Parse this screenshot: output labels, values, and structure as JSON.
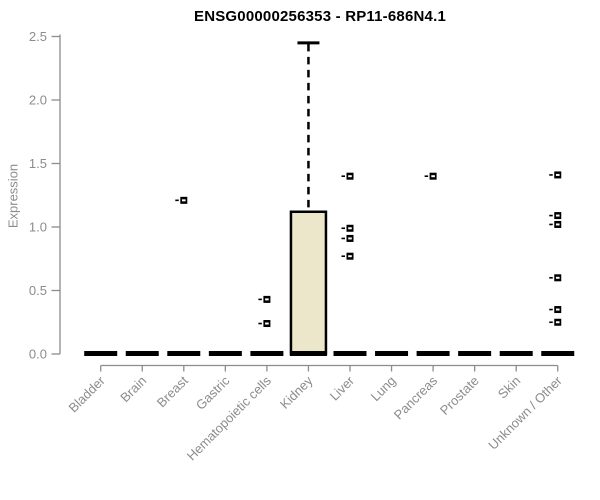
{
  "chart_data": {
    "type": "boxplot",
    "title": "ENSG00000256353 - RP11-686N4.1",
    "ylabel": "Expression",
    "xlabel": "",
    "ylim": [
      0,
      2.5
    ],
    "yticks": [
      "0.0",
      "0.5",
      "1.0",
      "1.5",
      "2.0",
      "2.5"
    ],
    "grid": "off",
    "legend": "none",
    "categories": [
      "Bladder",
      "Brain",
      "Breast",
      "Gastric",
      "Hematopoietic cells",
      "Kidney",
      "Liver",
      "Lung",
      "Pancreas",
      "Prostate",
      "Skin",
      "Unknown / Other"
    ],
    "boxes": [
      {
        "category": "Bladder",
        "whisker_low": 0,
        "q1": 0,
        "median": 0,
        "q3": 0,
        "whisker_high": 0,
        "outliers": []
      },
      {
        "category": "Brain",
        "whisker_low": 0,
        "q1": 0,
        "median": 0,
        "q3": 0,
        "whisker_high": 0,
        "outliers": []
      },
      {
        "category": "Breast",
        "whisker_low": 0,
        "q1": 0,
        "median": 0,
        "q3": 0,
        "whisker_high": 0,
        "outliers": [
          1.21
        ]
      },
      {
        "category": "Gastric",
        "whisker_low": 0,
        "q1": 0,
        "median": 0,
        "q3": 0,
        "whisker_high": 0,
        "outliers": []
      },
      {
        "category": "Hematopoietic cells",
        "whisker_low": 0,
        "q1": 0,
        "median": 0,
        "q3": 0,
        "whisker_high": 0,
        "outliers": [
          0.43,
          0.24
        ]
      },
      {
        "category": "Kidney",
        "whisker_low": 0,
        "q1": 0,
        "median": 0,
        "q3": 1.12,
        "whisker_high": 2.45,
        "outliers": []
      },
      {
        "category": "Liver",
        "whisker_low": 0,
        "q1": 0,
        "median": 0,
        "q3": 0,
        "whisker_high": 0,
        "outliers": [
          1.4,
          0.99,
          0.91,
          0.77
        ]
      },
      {
        "category": "Lung",
        "whisker_low": 0,
        "q1": 0,
        "median": 0,
        "q3": 0,
        "whisker_high": 0,
        "outliers": []
      },
      {
        "category": "Pancreas",
        "whisker_low": 0,
        "q1": 0,
        "median": 0,
        "q3": 0,
        "whisker_high": 0,
        "outliers": [
          1.4
        ]
      },
      {
        "category": "Prostate",
        "whisker_low": 0,
        "q1": 0,
        "median": 0,
        "q3": 0,
        "whisker_high": 0,
        "outliers": []
      },
      {
        "category": "Skin",
        "whisker_low": 0,
        "q1": 0,
        "median": 0,
        "q3": 0,
        "whisker_high": 0,
        "outliers": []
      },
      {
        "category": "Unknown / Other",
        "whisker_low": 0,
        "q1": 0,
        "median": 0,
        "q3": 0,
        "whisker_high": 0,
        "outliers": [
          1.41,
          1.09,
          1.02,
          0.6,
          0.35,
          0.25
        ]
      }
    ],
    "colors": {
      "box_fill": "#ece7ca",
      "box_stroke": "#000000",
      "median": "#000000",
      "outlier_fill": "#ffffff",
      "axis": "#8c8c8c",
      "title": "#000000",
      "background": "#ffffff"
    }
  }
}
